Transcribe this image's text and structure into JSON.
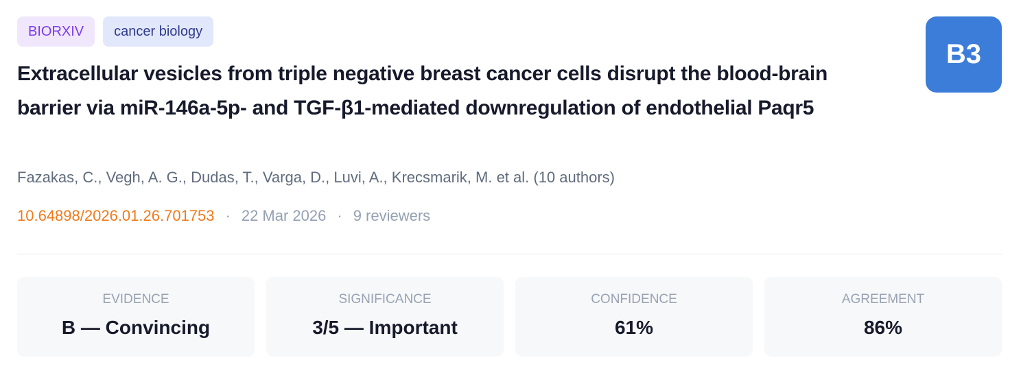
{
  "tags": [
    "BIORXIV",
    "cancer biology"
  ],
  "badge": "B3",
  "title": "Extracellular vesicles from triple negative breast cancer cells disrupt the blood-brain barrier via miR-146a-5p- and TGF-β1-mediated downregulation of endothelial Paqr5",
  "authors": "Fazakas, C., Vegh, A. G., Dudas, T., Varga, D., Luvi, A., Krecsmarik, M. et al. (10 authors)",
  "meta": {
    "doi": "10.64898/2026.01.26.701753",
    "separator": "·",
    "date": "22 Mar 2026",
    "reviewers": "9 reviewers"
  },
  "metrics": [
    {
      "label": "EVIDENCE",
      "value": "B — Convincing"
    },
    {
      "label": "SIGNIFICANCE",
      "value": "3/5 — Important"
    },
    {
      "label": "CONFIDENCE",
      "value": "61%"
    },
    {
      "label": "AGREEMENT",
      "value": "86%"
    }
  ]
}
